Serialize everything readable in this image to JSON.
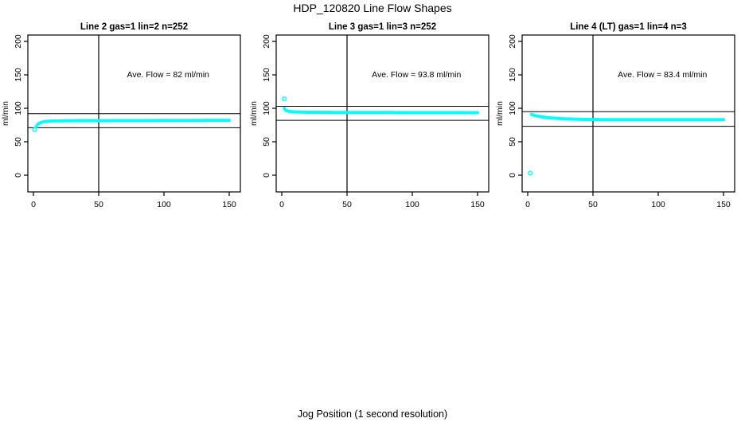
{
  "title": "HDP_120820  Line Flow Shapes",
  "xlabel": "Jog Position (1 second resolution)",
  "chart_data": {
    "type": "scatter",
    "title": "HDP_120820  Line Flow Shapes",
    "xlabel": "Jog Position (1 second resolution)",
    "ylabel": "ml/min",
    "xlim": [
      0,
      150
    ],
    "ylim": [
      0,
      200
    ],
    "x_ticks": [
      0,
      50,
      100,
      150
    ],
    "y_ticks": [
      0,
      50,
      100,
      150,
      200
    ],
    "grid": false,
    "point_color": "#00ffff",
    "line_color": "#000000",
    "vline_x": 50,
    "panels": [
      {
        "title": "Line 2 gas=1 lin=2 n=252",
        "annotation": "Ave. Flow =  82  ml/min",
        "ave_flow_ml_min": 82,
        "n": 252,
        "ref_lines": [
          92,
          71
        ],
        "outliers": [
          [
            1,
            68
          ]
        ],
        "profile": [
          [
            2,
            72
          ],
          [
            3,
            75
          ],
          [
            4,
            77
          ],
          [
            5,
            78
          ],
          [
            7,
            79.5
          ],
          [
            10,
            80.5
          ],
          [
            15,
            81
          ],
          [
            30,
            81.5
          ],
          [
            150,
            82
          ]
        ]
      },
      {
        "title": "Line 3 gas=1 lin=3 n=252",
        "annotation": "Ave. Flow =  93.8  ml/min",
        "ave_flow_ml_min": 93.8,
        "n": 252,
        "ref_lines": [
          103,
          82
        ],
        "outliers": [
          [
            2,
            114
          ]
        ],
        "profile": [
          [
            2,
            100
          ],
          [
            3,
            97
          ],
          [
            5,
            95.5
          ],
          [
            8,
            94.8
          ],
          [
            15,
            94.2
          ],
          [
            40,
            93.8
          ],
          [
            150,
            93.5
          ]
        ]
      },
      {
        "title": "Line 4 (LT) gas=1 lin=4 n=3",
        "annotation": "Ave. Flow =  83.4  ml/min",
        "ave_flow_ml_min": 83.4,
        "n": 3,
        "ref_lines": [
          95,
          73
        ],
        "outliers": [
          [
            2,
            3
          ]
        ],
        "profile": [
          [
            3,
            90.5
          ],
          [
            6,
            89
          ],
          [
            10,
            87.5
          ],
          [
            15,
            86
          ],
          [
            25,
            84.5
          ],
          [
            40,
            83.5
          ],
          [
            60,
            83
          ],
          [
            150,
            83
          ]
        ]
      }
    ]
  }
}
